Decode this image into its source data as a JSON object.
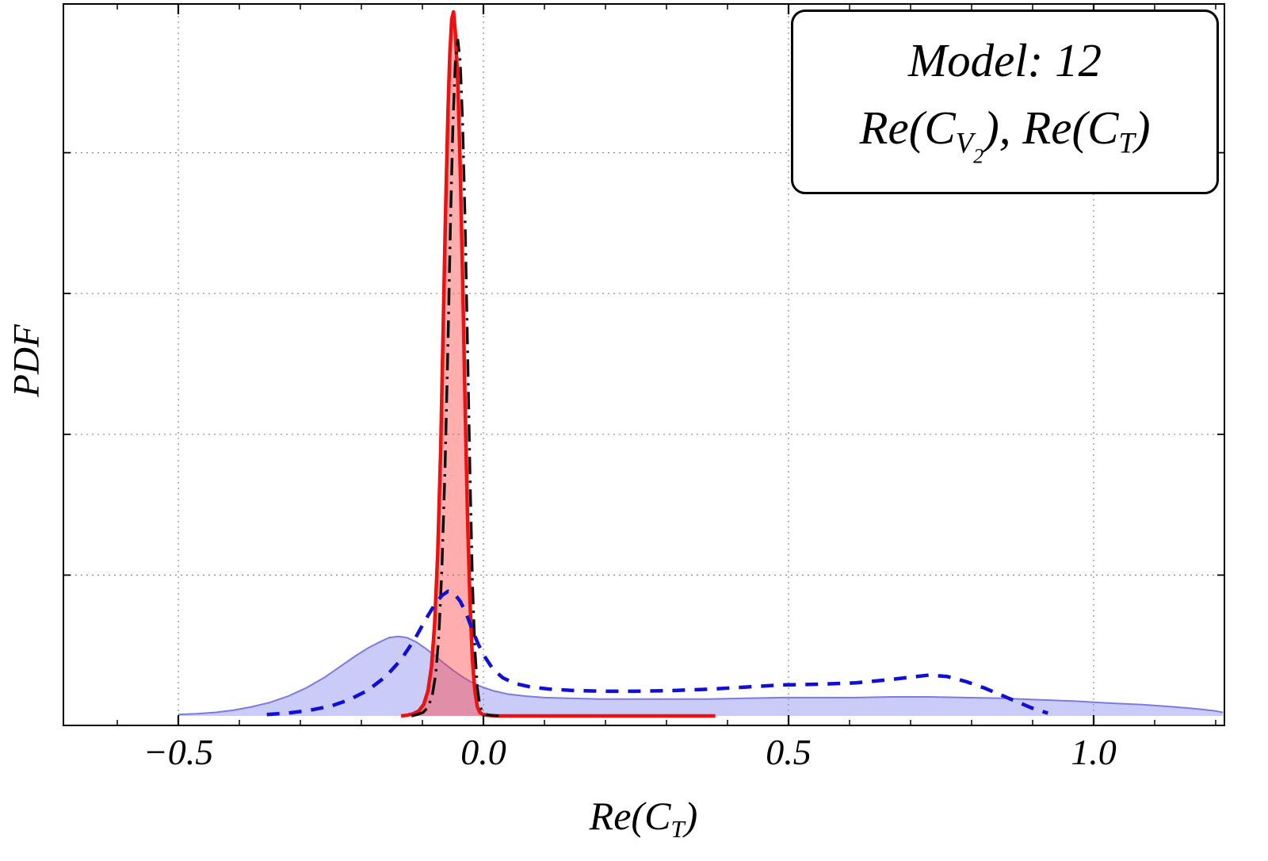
{
  "figure": {
    "y_axis": {
      "label": "PDF"
    },
    "x_axis": {
      "label_tokens": [
        {
          "t": "Re(C"
        },
        {
          "t": "T",
          "s": 1
        },
        {
          "t": ")"
        }
      ],
      "ticks": [
        {
          "v": -0.5,
          "label": "−0.5"
        },
        {
          "v": 0.0,
          "label": "0.0"
        },
        {
          "v": 0.5,
          "label": "0.5"
        },
        {
          "v": 1.0,
          "label": "1.0"
        }
      ]
    },
    "legend": {
      "line1": "Model: 12",
      "line2_tokens": [
        {
          "t": "Re(C"
        },
        {
          "t": "V",
          "s": 1
        },
        {
          "t": "2",
          "s": 2
        },
        {
          "t": ")"
        },
        {
          "t": ", "
        },
        {
          "t": "Re(C"
        },
        {
          "t": "T",
          "s": 1
        },
        {
          "t": ")"
        }
      ]
    }
  },
  "chart_data": {
    "type": "line",
    "title": "Model: 12",
    "xlabel": "Re(C_T)",
    "ylabel": "PDF",
    "legend_lines": [
      "Model: 12",
      "Re(C_V2), Re(C_T)"
    ],
    "xlim": [
      -0.688,
      1.214
    ],
    "ylim": [
      0,
      1.01
    ],
    "x_ticks": [
      -0.5,
      0.0,
      0.5,
      1.0
    ],
    "x_minor_tick_step": 0.1,
    "x_gridlines": [
      -0.5,
      0.0,
      0.5,
      1.0
    ],
    "y_gridlines": [
      0.2,
      0.4,
      0.6,
      0.8
    ],
    "grid_style": "dotted",
    "frame": true,
    "colors": {
      "red_line": "#ee1111",
      "red_fill": "#ff3b3b",
      "black_line": "#111111",
      "blue_line": "#0f0fd6",
      "blue_fill": "#8c8cf0",
      "grid": "#888888",
      "frame": "#000000"
    },
    "series": [
      {
        "name": "blue-filled-pdf",
        "type": "area",
        "stroke": "#7b7be0",
        "stroke_width": 2,
        "dash": "solid",
        "fill": "#8c8cf0",
        "fill_opacity": 0.45,
        "points": [
          [
            -0.5,
            0.002
          ],
          [
            -0.47,
            0.003
          ],
          [
            -0.44,
            0.005
          ],
          [
            -0.41,
            0.008
          ],
          [
            -0.38,
            0.013
          ],
          [
            -0.35,
            0.019
          ],
          [
            -0.32,
            0.028
          ],
          [
            -0.29,
            0.04
          ],
          [
            -0.26,
            0.055
          ],
          [
            -0.235,
            0.07
          ],
          [
            -0.21,
            0.085
          ],
          [
            -0.19,
            0.096
          ],
          [
            -0.17,
            0.105
          ],
          [
            -0.155,
            0.111
          ],
          [
            -0.14,
            0.113
          ],
          [
            -0.125,
            0.111
          ],
          [
            -0.11,
            0.105
          ],
          [
            -0.095,
            0.096
          ],
          [
            -0.08,
            0.086
          ],
          [
            -0.065,
            0.075
          ],
          [
            -0.05,
            0.065
          ],
          [
            -0.035,
            0.056
          ],
          [
            -0.02,
            0.048
          ],
          [
            -0.005,
            0.042
          ],
          [
            0.015,
            0.036
          ],
          [
            0.04,
            0.031
          ],
          [
            0.07,
            0.028
          ],
          [
            0.1,
            0.026
          ],
          [
            0.14,
            0.025
          ],
          [
            0.19,
            0.024
          ],
          [
            0.25,
            0.024
          ],
          [
            0.31,
            0.024
          ],
          [
            0.37,
            0.024
          ],
          [
            0.43,
            0.025
          ],
          [
            0.49,
            0.026
          ],
          [
            0.55,
            0.026
          ],
          [
            0.61,
            0.026
          ],
          [
            0.67,
            0.027
          ],
          [
            0.73,
            0.027
          ],
          [
            0.79,
            0.026
          ],
          [
            0.85,
            0.025
          ],
          [
            0.91,
            0.023
          ],
          [
            0.97,
            0.021
          ],
          [
            1.03,
            0.018
          ],
          [
            1.08,
            0.016
          ],
          [
            1.13,
            0.013
          ],
          [
            1.17,
            0.01
          ],
          [
            1.2,
            0.007
          ],
          [
            1.212,
            0.005
          ]
        ]
      },
      {
        "name": "red-solid-pdf",
        "type": "area",
        "stroke": "#ee1111",
        "stroke_width": 4.5,
        "dash": "solid",
        "fill": "#ff3b3b",
        "fill_opacity": 0.42,
        "points": [
          [
            -0.135,
            0.0
          ],
          [
            -0.125,
            0.001
          ],
          [
            -0.115,
            0.003
          ],
          [
            -0.106,
            0.007
          ],
          [
            -0.098,
            0.016
          ],
          [
            -0.091,
            0.035
          ],
          [
            -0.085,
            0.07
          ],
          [
            -0.08,
            0.13
          ],
          [
            -0.075,
            0.23
          ],
          [
            -0.07,
            0.38
          ],
          [
            -0.066,
            0.55
          ],
          [
            -0.062,
            0.72
          ],
          [
            -0.058,
            0.86
          ],
          [
            -0.055,
            0.94
          ],
          [
            -0.052,
            0.99
          ],
          [
            -0.049,
            1.0
          ],
          [
            -0.046,
            0.97
          ],
          [
            -0.042,
            0.9
          ],
          [
            -0.038,
            0.78
          ],
          [
            -0.034,
            0.62
          ],
          [
            -0.03,
            0.44
          ],
          [
            -0.026,
            0.28
          ],
          [
            -0.022,
            0.16
          ],
          [
            -0.018,
            0.08
          ],
          [
            -0.014,
            0.035
          ],
          [
            -0.01,
            0.013
          ],
          [
            -0.006,
            0.005
          ],
          [
            -0.001,
            0.002
          ],
          [
            0.006,
            0.001
          ],
          [
            0.02,
            0.0
          ],
          [
            0.1,
            0.0
          ],
          [
            0.2,
            0.0
          ],
          [
            0.3,
            0.0
          ],
          [
            0.38,
            0.0
          ]
        ]
      },
      {
        "name": "black-dash-dot-pdf",
        "type": "line",
        "stroke": "#111111",
        "stroke_width": 3.5,
        "dash": "dashdot",
        "fill": "none",
        "points": [
          [
            -0.118,
            0.0
          ],
          [
            -0.108,
            0.002
          ],
          [
            -0.099,
            0.005
          ],
          [
            -0.091,
            0.012
          ],
          [
            -0.084,
            0.028
          ],
          [
            -0.078,
            0.06
          ],
          [
            -0.073,
            0.115
          ],
          [
            -0.068,
            0.21
          ],
          [
            -0.063,
            0.35
          ],
          [
            -0.058,
            0.53
          ],
          [
            -0.054,
            0.7
          ],
          [
            -0.05,
            0.84
          ],
          [
            -0.046,
            0.93
          ],
          [
            -0.042,
            0.96
          ],
          [
            -0.038,
            0.93
          ],
          [
            -0.034,
            0.84
          ],
          [
            -0.03,
            0.7
          ],
          [
            -0.026,
            0.52
          ],
          [
            -0.022,
            0.34
          ],
          [
            -0.018,
            0.19
          ],
          [
            -0.014,
            0.095
          ],
          [
            -0.01,
            0.04
          ],
          [
            -0.006,
            0.015
          ],
          [
            -0.002,
            0.006
          ],
          [
            0.004,
            0.002
          ],
          [
            0.012,
            0.001
          ],
          [
            0.025,
            0.0
          ]
        ]
      },
      {
        "name": "blue-dashed-pdf",
        "type": "line",
        "stroke": "#0f0fd6",
        "stroke_width": 4.5,
        "dash": "dashed",
        "fill": "none",
        "points": [
          [
            -0.355,
            0.002
          ],
          [
            -0.32,
            0.004
          ],
          [
            -0.285,
            0.008
          ],
          [
            -0.25,
            0.014
          ],
          [
            -0.22,
            0.023
          ],
          [
            -0.19,
            0.036
          ],
          [
            -0.16,
            0.056
          ],
          [
            -0.135,
            0.08
          ],
          [
            -0.112,
            0.11
          ],
          [
            -0.094,
            0.138
          ],
          [
            -0.08,
            0.158
          ],
          [
            -0.068,
            0.171
          ],
          [
            -0.058,
            0.177
          ],
          [
            -0.048,
            0.174
          ],
          [
            -0.038,
            0.163
          ],
          [
            -0.028,
            0.145
          ],
          [
            -0.018,
            0.122
          ],
          [
            -0.008,
            0.101
          ],
          [
            0.003,
            0.083
          ],
          [
            0.016,
            0.066
          ],
          [
            0.032,
            0.054
          ],
          [
            0.052,
            0.046
          ],
          [
            0.078,
            0.041
          ],
          [
            0.11,
            0.038
          ],
          [
            0.15,
            0.036
          ],
          [
            0.2,
            0.035
          ],
          [
            0.25,
            0.035
          ],
          [
            0.31,
            0.036
          ],
          [
            0.37,
            0.038
          ],
          [
            0.43,
            0.041
          ],
          [
            0.49,
            0.044
          ],
          [
            0.55,
            0.045
          ],
          [
            0.61,
            0.047
          ],
          [
            0.66,
            0.051
          ],
          [
            0.7,
            0.055
          ],
          [
            0.73,
            0.058
          ],
          [
            0.76,
            0.056
          ],
          [
            0.79,
            0.049
          ],
          [
            0.82,
            0.04
          ],
          [
            0.85,
            0.029
          ],
          [
            0.88,
            0.018
          ],
          [
            0.905,
            0.009
          ],
          [
            0.925,
            0.004
          ]
        ]
      }
    ]
  }
}
